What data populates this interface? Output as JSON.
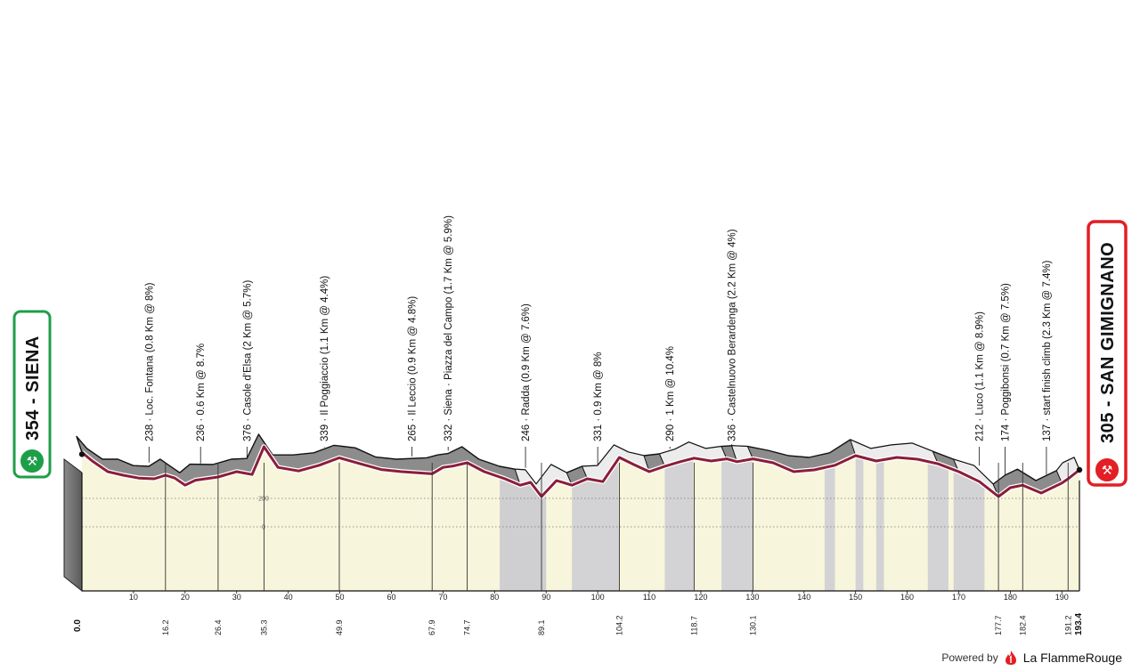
{
  "chart_data": {
    "type": "area",
    "xlabel": "",
    "ylabel": "",
    "xlim": [
      0,
      193.4
    ],
    "x_ticks": [
      10,
      20,
      30,
      40,
      50,
      60,
      70,
      80,
      90,
      100,
      110,
      120,
      130,
      140,
      150,
      160,
      170,
      180,
      190
    ],
    "grid_labels": [
      "200",
      "0"
    ],
    "start": {
      "label": "354 - SIENA",
      "color": "#1f9e49"
    },
    "finish": {
      "label": "305 - SAN GIMIGNANO",
      "color": "#e31e24"
    },
    "climbs": [
      {
        "text": "238 · Loc. Fontana (0.8 Km @ 8%)",
        "km": 13
      },
      {
        "text": "236 · 0.6 Km @ 8.7%",
        "km": 23
      },
      {
        "text": "376 · Casole d'Elsa (2 Km @ 5.7%)",
        "km": 32
      },
      {
        "text": "339 · Il Poggiaccio (1.1 Km @ 4.4%)",
        "km": 47
      },
      {
        "text": "265 · Il Leccio (0.9 Km @ 4.8%)",
        "km": 64
      },
      {
        "text": "332 · Siena · Piazza del Campo (1.7 Km @ 5.9%)",
        "km": 71
      },
      {
        "text": "246 · Radda (0.9 Km @ 7.6%)",
        "km": 86
      },
      {
        "text": "331 · 0.9 Km @ 8%",
        "km": 100
      },
      {
        "text": "290 · 1 Km @ 10.4%",
        "km": 114
      },
      {
        "text": "336 · Castelnuovo Berardenga (2.2 Km @ 4%)",
        "km": 126
      },
      {
        "text": "212 · Luco (1.1 Km @ 8.9%)",
        "km": 174
      },
      {
        "text": "174 · Poggibonsi (0.7 Km @ 7.5%)",
        "km": 179
      },
      {
        "text": "137 · start finish climb (2.3 Km @ 7.4%)",
        "km": 187
      }
    ],
    "km_markers": [
      "0.0",
      "16.2",
      "26.4",
      "35.3",
      "49.9",
      "67.9",
      "74.7",
      "89.1",
      "104.2",
      "118.7",
      "130.1",
      "177.7",
      "182.4",
      "191.2",
      "193.4"
    ],
    "road_profile": {
      "km": [
        0,
        2,
        5,
        8,
        11,
        14,
        16.2,
        18,
        20,
        22,
        26.4,
        30,
        33,
        35.3,
        38,
        42,
        46,
        49.9,
        54,
        58,
        62,
        67.9,
        70,
        72,
        74.7,
        78,
        82,
        85,
        87,
        89.1,
        92,
        95,
        98,
        101,
        104.2,
        107,
        110,
        113,
        116,
        118.7,
        122,
        125,
        127,
        130.1,
        134,
        138,
        142,
        146,
        150,
        154,
        158,
        162,
        166,
        170,
        174,
        177.7,
        180,
        182.4,
        186,
        190,
        191.2,
        193.4
      ],
      "elevation": [
        354,
        330,
        300,
        290,
        282,
        280,
        290,
        282,
        262,
        276,
        285,
        300,
        292,
        370,
        312,
        302,
        318,
        339,
        322,
        306,
        300,
        294,
        312,
        316,
        325,
        300,
        280,
        262,
        270,
        230,
        275,
        262,
        280,
        272,
        340,
        320,
        300,
        315,
        328,
        338,
        330,
        336,
        328,
        336,
        325,
        300,
        305,
        318,
        345,
        330,
        340,
        335,
        322,
        300,
        272,
        230,
        255,
        262,
        240,
        268,
        280,
        305
      ]
    }
  },
  "footer": {
    "powered_by": "Powered by",
    "brand": "La FlammeRouge"
  }
}
